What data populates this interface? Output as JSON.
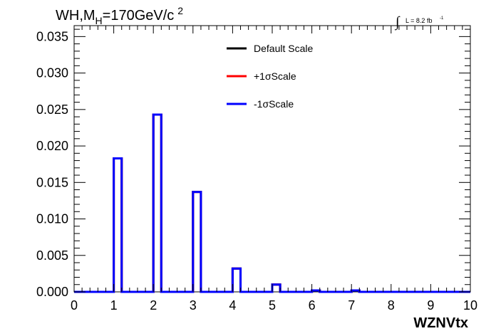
{
  "chart_data": {
    "type": "bar",
    "title": {
      "main": "WH,M",
      "subscript": "H",
      "rest": "=170GeV/c",
      "superscript": "2"
    },
    "luminosity": {
      "integral_sign": "∫",
      "text": "L = 8.2 fb",
      "superscript": "-1"
    },
    "xlabel": "WZNVtx",
    "ylabel": "",
    "xlim": [
      0,
      10
    ],
    "ylim": [
      0,
      0.0365
    ],
    "x_ticks": [
      "0",
      "1",
      "2",
      "3",
      "4",
      "5",
      "6",
      "7",
      "8",
      "9",
      "10"
    ],
    "y_ticks": [
      "0.000",
      "0.005",
      "0.010",
      "0.015",
      "0.020",
      "0.025",
      "0.030",
      "0.035"
    ],
    "bins": [
      {
        "low": 1.0,
        "high": 1.2,
        "value": 0.0183
      },
      {
        "low": 2.0,
        "high": 2.2,
        "value": 0.0243
      },
      {
        "low": 3.0,
        "high": 3.2,
        "value": 0.0137
      },
      {
        "low": 4.0,
        "high": 4.2,
        "value": 0.0032
      },
      {
        "low": 5.0,
        "high": 5.2,
        "value": 0.001
      },
      {
        "low": 6.0,
        "high": 6.2,
        "value": 0.0002
      },
      {
        "low": 7.0,
        "high": 7.2,
        "value": 0.0002
      }
    ],
    "series": [
      {
        "name": "Default Scale",
        "color": "#000000"
      },
      {
        "name": "+1σScale",
        "color": "#ff0000"
      },
      {
        "name": "-1σScale",
        "color": "#0000ff"
      }
    ],
    "legend_position": "top-center",
    "grid": false
  }
}
